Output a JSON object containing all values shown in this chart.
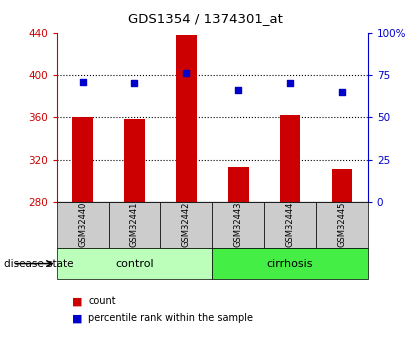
{
  "title": "GDS1354 / 1374301_at",
  "samples": [
    "GSM32440",
    "GSM32441",
    "GSM32442",
    "GSM32443",
    "GSM32444",
    "GSM32445"
  ],
  "count_values": [
    360,
    358,
    438,
    313,
    362,
    311
  ],
  "percentile_values": [
    71,
    70,
    76,
    66,
    70,
    65
  ],
  "count_base": 280,
  "left_ylim": [
    280,
    440
  ],
  "right_ylim": [
    0,
    100
  ],
  "left_yticks": [
    280,
    320,
    360,
    400,
    440
  ],
  "right_yticks": [
    0,
    25,
    50,
    75,
    100
  ],
  "right_yticklabels": [
    "0",
    "25",
    "50",
    "75",
    "100%"
  ],
  "bar_color": "#cc0000",
  "dot_color": "#0000cc",
  "control_color": "#bbffbb",
  "cirrhosis_color": "#44ee44",
  "sample_box_color": "#cccccc",
  "tick_color_left": "#cc0000",
  "tick_color_right": "#0000cc",
  "grid_yticks": [
    320,
    360,
    400
  ],
  "n_control": 3,
  "n_cirrhosis": 3
}
